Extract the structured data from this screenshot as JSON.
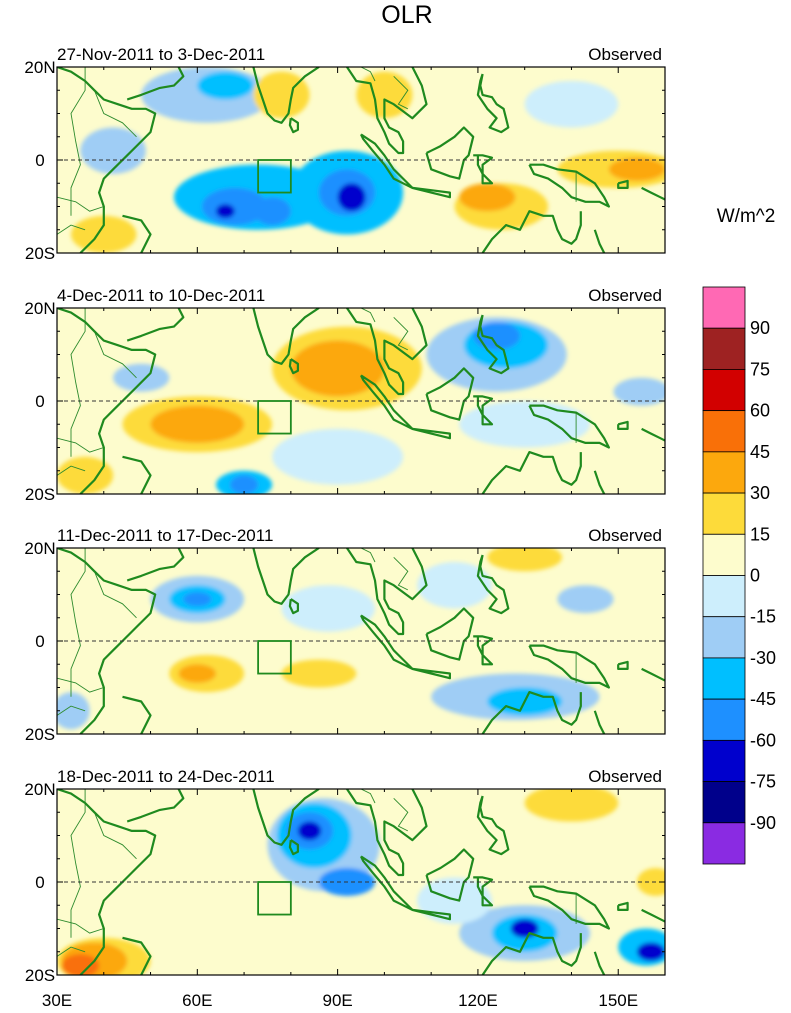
{
  "chart_data": {
    "type": "heatmap",
    "title": "OLR",
    "units": "W/m^2",
    "x_ticks": [
      "30E",
      "60E",
      "90E",
      "120E",
      "150E"
    ],
    "x_tick_values": [
      30,
      60,
      90,
      120,
      150
    ],
    "xlim": [
      30,
      160
    ],
    "y_ticks": [
      "20N",
      "0",
      "20S"
    ],
    "y_tick_values": [
      20,
      0,
      -20
    ],
    "ylim": [
      -20,
      20
    ],
    "colorbar": {
      "levels": [
        -90,
        -75,
        -60,
        -45,
        -30,
        -15,
        0,
        15,
        30,
        45,
        60,
        75,
        90
      ],
      "labels": [
        "90",
        "75",
        "60",
        "45",
        "30",
        "15",
        "0",
        "-15",
        "-30",
        "-45",
        "-60",
        "-75",
        "-90"
      ],
      "colors": [
        "#8a2be2",
        "#00008b",
        "#0000cd",
        "#1e90ff",
        "#00bfff",
        "#9fcdf5",
        "#cdeefc",
        "#fdfccd",
        "#fddb3a",
        "#fca80d",
        "#f97008",
        "#d20000",
        "#9e2222",
        "#ff69b4"
      ]
    },
    "box": {
      "lon": [
        73,
        80
      ],
      "lat": [
        -7,
        0
      ]
    },
    "panels": [
      {
        "period": "27-Nov-2011 to 3-Dec-2011",
        "label": "Observed",
        "anomalies": [
          {
            "lon": 62,
            "lat": 14,
            "rx": 14,
            "ry": 6,
            "value": -30
          },
          {
            "lon": 66,
            "lat": 16,
            "rx": 6,
            "ry": 3,
            "value": -45
          },
          {
            "lon": 73,
            "lat": -8,
            "rx": 18,
            "ry": 7,
            "value": -45
          },
          {
            "lon": 68,
            "lat": -10,
            "rx": 7,
            "ry": 4,
            "value": -60
          },
          {
            "lon": 66,
            "lat": -11,
            "rx": 2,
            "ry": 1.5,
            "value": -75
          },
          {
            "lon": 76,
            "lat": -11,
            "rx": 4,
            "ry": 3,
            "value": -60
          },
          {
            "lon": 92,
            "lat": -7,
            "rx": 12,
            "ry": 9,
            "value": -45
          },
          {
            "lon": 92,
            "lat": -7,
            "rx": 6,
            "ry": 5,
            "value": -60
          },
          {
            "lon": 93,
            "lat": -8,
            "rx": 3,
            "ry": 3,
            "value": -75
          },
          {
            "lon": 42,
            "lat": 2,
            "rx": 7,
            "ry": 5,
            "value": -30
          },
          {
            "lon": 125,
            "lat": -10,
            "rx": 10,
            "ry": 5,
            "value": 15
          },
          {
            "lon": 122,
            "lat": -8,
            "rx": 6,
            "ry": 3,
            "value": 30
          },
          {
            "lon": 150,
            "lat": -2,
            "rx": 13,
            "ry": 4,
            "value": 15
          },
          {
            "lon": 154,
            "lat": -2,
            "rx": 6,
            "ry": 2.5,
            "value": 30
          },
          {
            "lon": 78,
            "lat": 14,
            "rx": 6,
            "ry": 5,
            "value": 15
          },
          {
            "lon": 100,
            "lat": 14,
            "rx": 6,
            "ry": 5,
            "value": 15
          },
          {
            "lon": 140,
            "lat": 12,
            "rx": 10,
            "ry": 5,
            "value": -15
          },
          {
            "lon": 40,
            "lat": -16,
            "rx": 7,
            "ry": 4,
            "value": 15
          }
        ]
      },
      {
        "period": "4-Dec-2011 to 10-Dec-2011",
        "label": "Observed",
        "anomalies": [
          {
            "lon": 60,
            "lat": -5,
            "rx": 16,
            "ry": 6,
            "value": 15
          },
          {
            "lon": 60,
            "lat": -5,
            "rx": 10,
            "ry": 4,
            "value": 30
          },
          {
            "lon": 92,
            "lat": 7,
            "rx": 16,
            "ry": 9,
            "value": 15
          },
          {
            "lon": 90,
            "lat": 7,
            "rx": 10,
            "ry": 6,
            "value": 30
          },
          {
            "lon": 124,
            "lat": 10,
            "rx": 15,
            "ry": 8,
            "value": -30
          },
          {
            "lon": 126,
            "lat": 12,
            "rx": 9,
            "ry": 5,
            "value": -45
          },
          {
            "lon": 124,
            "lat": 14,
            "rx": 5,
            "ry": 3,
            "value": -60
          },
          {
            "lon": 70,
            "lat": -18,
            "rx": 6,
            "ry": 3,
            "value": -45
          },
          {
            "lon": 70,
            "lat": -18,
            "rx": 3,
            "ry": 2,
            "value": -60
          },
          {
            "lon": 90,
            "lat": -12,
            "rx": 14,
            "ry": 6,
            "value": -15
          },
          {
            "lon": 48,
            "lat": 5,
            "rx": 6,
            "ry": 3,
            "value": -30
          },
          {
            "lon": 130,
            "lat": -5,
            "rx": 14,
            "ry": 5,
            "value": -15
          },
          {
            "lon": 155,
            "lat": 2,
            "rx": 6,
            "ry": 3,
            "value": -30
          },
          {
            "lon": 36,
            "lat": -16,
            "rx": 6,
            "ry": 4,
            "value": 15
          }
        ]
      },
      {
        "period": "11-Dec-2011 to 17-Dec-2011",
        "label": "Observed",
        "anomalies": [
          {
            "lon": 60,
            "lat": 9,
            "rx": 10,
            "ry": 5,
            "value": -30
          },
          {
            "lon": 60,
            "lat": 9,
            "rx": 6,
            "ry": 3,
            "value": -45
          },
          {
            "lon": 60,
            "lat": 9,
            "rx": 3,
            "ry": 1.5,
            "value": -60
          },
          {
            "lon": 62,
            "lat": -7,
            "rx": 8,
            "ry": 4,
            "value": 15
          },
          {
            "lon": 60,
            "lat": -7,
            "rx": 4,
            "ry": 2,
            "value": 30
          },
          {
            "lon": 86,
            "lat": -7,
            "rx": 8,
            "ry": 3,
            "value": 15
          },
          {
            "lon": 88,
            "lat": 7,
            "rx": 10,
            "ry": 5,
            "value": -15
          },
          {
            "lon": 128,
            "lat": -12,
            "rx": 18,
            "ry": 5,
            "value": -30
          },
          {
            "lon": 130,
            "lat": -13,
            "rx": 8,
            "ry": 3,
            "value": -45
          },
          {
            "lon": 115,
            "lat": 12,
            "rx": 8,
            "ry": 5,
            "value": -15
          },
          {
            "lon": 143,
            "lat": 9,
            "rx": 6,
            "ry": 3,
            "value": -30
          },
          {
            "lon": 33,
            "lat": -15,
            "rx": 4,
            "ry": 4,
            "value": -30
          },
          {
            "lon": 130,
            "lat": 18,
            "rx": 8,
            "ry": 3,
            "value": 15
          }
        ]
      },
      {
        "period": "18-Dec-2011 to 24-Dec-2011",
        "label": "Observed",
        "anomalies": [
          {
            "lon": 87,
            "lat": 8,
            "rx": 12,
            "ry": 10,
            "value": -30
          },
          {
            "lon": 85,
            "lat": 10,
            "rx": 8,
            "ry": 7,
            "value": -45
          },
          {
            "lon": 84,
            "lat": 11,
            "rx": 5,
            "ry": 4,
            "value": -60
          },
          {
            "lon": 84,
            "lat": 11,
            "rx": 2.5,
            "ry": 2,
            "value": -75
          },
          {
            "lon": 92,
            "lat": 0,
            "rx": 6,
            "ry": 3,
            "value": -60
          },
          {
            "lon": 130,
            "lat": -11,
            "rx": 14,
            "ry": 6,
            "value": -30
          },
          {
            "lon": 130,
            "lat": -11,
            "rx": 7,
            "ry": 4,
            "value": -45
          },
          {
            "lon": 130,
            "lat": -10,
            "rx": 3,
            "ry": 2,
            "value": -75
          },
          {
            "lon": 156,
            "lat": -14,
            "rx": 6,
            "ry": 4,
            "value": -45
          },
          {
            "lon": 157,
            "lat": -15,
            "rx": 3,
            "ry": 2,
            "value": -75
          },
          {
            "lon": 40,
            "lat": -17,
            "rx": 10,
            "ry": 5,
            "value": 15
          },
          {
            "lon": 38,
            "lat": -17,
            "rx": 7,
            "ry": 4,
            "value": 30
          },
          {
            "lon": 35,
            "lat": -18,
            "rx": 4,
            "ry": 2.5,
            "value": 45
          },
          {
            "lon": 140,
            "lat": 17,
            "rx": 10,
            "ry": 4,
            "value": 15
          },
          {
            "lon": 158,
            "lat": 0,
            "rx": 4,
            "ry": 3,
            "value": 15
          },
          {
            "lon": 115,
            "lat": -4,
            "rx": 8,
            "ry": 5,
            "value": -15
          }
        ]
      }
    ]
  }
}
